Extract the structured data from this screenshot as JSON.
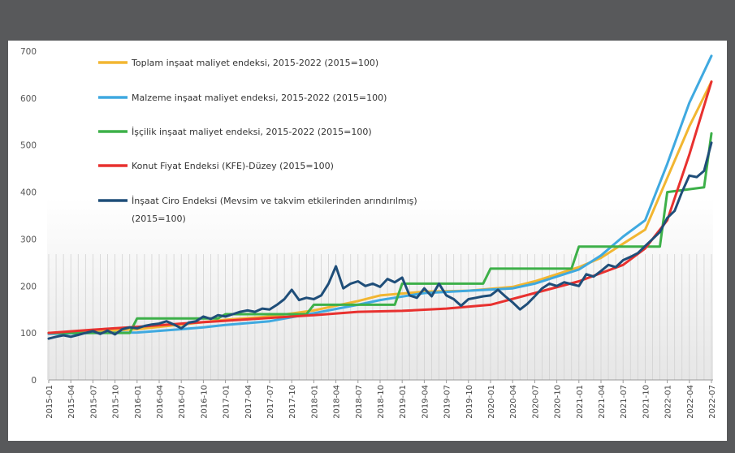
{
  "chart_data": {
    "type": "line",
    "title": "",
    "xlabel": "",
    "ylabel": "",
    "ylim": [
      0,
      700
    ],
    "yticks": [
      0,
      100,
      200,
      300,
      400,
      500,
      600,
      700
    ],
    "x_tick_labels": [
      "2015-01",
      "2015-04",
      "2015-07",
      "2015-10",
      "2016-01",
      "2016-04",
      "2016-07",
      "2016-10",
      "2017-01",
      "2017-04",
      "2017-07",
      "2017-10",
      "2018-01",
      "2018-04",
      "2018-07",
      "2018-10",
      "2019-01",
      "2019-04",
      "2019-07",
      "2019-10",
      "2020-01",
      "2020-04",
      "2020-07",
      "2020-10",
      "2021-01",
      "2021-04",
      "2021-07",
      "2021-10",
      "2022-01",
      "2022-04",
      "2022-07"
    ],
    "x_start": "2015-01",
    "x_end": "2022-07",
    "grid": false,
    "legend_position": "top-left",
    "series": [
      {
        "name": "Toplam inşaat maliyet endeksi, 2015-2022 (2015=100)",
        "color": "#f2b631",
        "points": [
          [
            "2015-01",
            100
          ],
          [
            "2015-07",
            103
          ],
          [
            "2016-01",
            108
          ],
          [
            "2016-07",
            118
          ],
          [
            "2017-01",
            128
          ],
          [
            "2017-07",
            135
          ],
          [
            "2018-01",
            148
          ],
          [
            "2018-07",
            168
          ],
          [
            "2018-10",
            180
          ],
          [
            "2019-04",
            188
          ],
          [
            "2019-10",
            190
          ],
          [
            "2020-04",
            198
          ],
          [
            "2020-07",
            210
          ],
          [
            "2020-10",
            225
          ],
          [
            "2021-01",
            240
          ],
          [
            "2021-04",
            260
          ],
          [
            "2021-07",
            290
          ],
          [
            "2021-10",
            320
          ],
          [
            "2022-01",
            430
          ],
          [
            "2022-04",
            540
          ],
          [
            "2022-07",
            635
          ]
        ]
      },
      {
        "name": "Malzeme inşaat maliyet endeksi, 2015-2022 (2015=100)",
        "color": "#3fa9e0",
        "points": [
          [
            "2015-01",
            98
          ],
          [
            "2015-07",
            100
          ],
          [
            "2016-01",
            101
          ],
          [
            "2016-07",
            108
          ],
          [
            "2016-10",
            112
          ],
          [
            "2017-01",
            117
          ],
          [
            "2017-07",
            125
          ],
          [
            "2018-01",
            142
          ],
          [
            "2018-07",
            160
          ],
          [
            "2018-10",
            170
          ],
          [
            "2019-04",
            185
          ],
          [
            "2019-10",
            190
          ],
          [
            "2020-04",
            195
          ],
          [
            "2020-07",
            205
          ],
          [
            "2020-10",
            220
          ],
          [
            "2021-01",
            235
          ],
          [
            "2021-04",
            265
          ],
          [
            "2021-07",
            305
          ],
          [
            "2021-10",
            340
          ],
          [
            "2022-01",
            460
          ],
          [
            "2022-04",
            590
          ],
          [
            "2022-07",
            690
          ]
        ]
      },
      {
        "name": "İşçilik inşaat maliyet endeksi, 2015-2022 (2015=100)",
        "color": "#3db049",
        "points": [
          [
            "2015-01",
            100
          ],
          [
            "2015-12",
            100
          ],
          [
            "2016-01",
            131
          ],
          [
            "2016-12",
            131
          ],
          [
            "2017-01",
            140
          ],
          [
            "2017-12",
            140
          ],
          [
            "2018-01",
            160
          ],
          [
            "2018-12",
            160
          ],
          [
            "2019-01",
            205
          ],
          [
            "2019-12",
            205
          ],
          [
            "2020-01",
            237
          ],
          [
            "2020-12",
            237
          ],
          [
            "2021-01",
            284
          ],
          [
            "2021-12",
            284
          ],
          [
            "2022-01",
            400
          ],
          [
            "2022-06",
            410
          ],
          [
            "2022-07",
            525
          ]
        ]
      },
      {
        "name": "Konut Fiyat Endeksi (KFE)-Düzey (2015=100)",
        "color": "#e8312f",
        "points": [
          [
            "2015-01",
            100
          ],
          [
            "2015-07",
            107
          ],
          [
            "2016-01",
            113
          ],
          [
            "2016-07",
            120
          ],
          [
            "2017-01",
            126
          ],
          [
            "2017-07",
            132
          ],
          [
            "2018-01",
            138
          ],
          [
            "2018-07",
            145
          ],
          [
            "2019-01",
            147
          ],
          [
            "2019-07",
            152
          ],
          [
            "2020-01",
            160
          ],
          [
            "2020-07",
            185
          ],
          [
            "2021-01",
            210
          ],
          [
            "2021-07",
            245
          ],
          [
            "2021-10",
            280
          ],
          [
            "2022-01",
            340
          ],
          [
            "2022-04",
            480
          ],
          [
            "2022-07",
            635
          ]
        ]
      },
      {
        "name": "İnşaat Ciro Endeksi  (Mevsim ve takvim etkilerinden arındırılmış) (2015=100)",
        "color": "#1f4e79",
        "points": [
          [
            "2015-01",
            88
          ],
          [
            "2015-02",
            92
          ],
          [
            "2015-03",
            95
          ],
          [
            "2015-04",
            92
          ],
          [
            "2015-05",
            96
          ],
          [
            "2015-06",
            100
          ],
          [
            "2015-07",
            104
          ],
          [
            "2015-08",
            98
          ],
          [
            "2015-09",
            105
          ],
          [
            "2015-10",
            97
          ],
          [
            "2015-11",
            108
          ],
          [
            "2015-12",
            112
          ],
          [
            "2016-01",
            110
          ],
          [
            "2016-02",
            115
          ],
          [
            "2016-03",
            118
          ],
          [
            "2016-04",
            120
          ],
          [
            "2016-05",
            125
          ],
          [
            "2016-06",
            118
          ],
          [
            "2016-07",
            110
          ],
          [
            "2016-08",
            122
          ],
          [
            "2016-09",
            125
          ],
          [
            "2016-10",
            135
          ],
          [
            "2016-11",
            130
          ],
          [
            "2016-12",
            138
          ],
          [
            "2017-01",
            135
          ],
          [
            "2017-02",
            140
          ],
          [
            "2017-03",
            145
          ],
          [
            "2017-04",
            148
          ],
          [
            "2017-05",
            145
          ],
          [
            "2017-06",
            152
          ],
          [
            "2017-07",
            150
          ],
          [
            "2017-08",
            160
          ],
          [
            "2017-09",
            172
          ],
          [
            "2017-10",
            192
          ],
          [
            "2017-11",
            170
          ],
          [
            "2017-12",
            175
          ],
          [
            "2018-01",
            172
          ],
          [
            "2018-02",
            180
          ],
          [
            "2018-03",
            205
          ],
          [
            "2018-04",
            242
          ],
          [
            "2018-05",
            195
          ],
          [
            "2018-06",
            205
          ],
          [
            "2018-07",
            210
          ],
          [
            "2018-08",
            200
          ],
          [
            "2018-09",
            205
          ],
          [
            "2018-10",
            198
          ],
          [
            "2018-11",
            215
          ],
          [
            "2018-12",
            208
          ],
          [
            "2019-01",
            218
          ],
          [
            "2019-02",
            180
          ],
          [
            "2019-03",
            175
          ],
          [
            "2019-04",
            195
          ],
          [
            "2019-05",
            178
          ],
          [
            "2019-06",
            205
          ],
          [
            "2019-07",
            180
          ],
          [
            "2019-08",
            172
          ],
          [
            "2019-09",
            158
          ],
          [
            "2019-10",
            172
          ],
          [
            "2019-11",
            175
          ],
          [
            "2019-12",
            178
          ],
          [
            "2020-01",
            180
          ],
          [
            "2020-02",
            192
          ],
          [
            "2020-03",
            178
          ],
          [
            "2020-04",
            165
          ],
          [
            "2020-05",
            150
          ],
          [
            "2020-06",
            162
          ],
          [
            "2020-07",
            178
          ],
          [
            "2020-08",
            195
          ],
          [
            "2020-09",
            205
          ],
          [
            "2020-10",
            200
          ],
          [
            "2020-11",
            208
          ],
          [
            "2020-12",
            204
          ],
          [
            "2021-01",
            200
          ],
          [
            "2021-02",
            225
          ],
          [
            "2021-03",
            220
          ],
          [
            "2021-04",
            232
          ],
          [
            "2021-05",
            245
          ],
          [
            "2021-06",
            240
          ],
          [
            "2021-07",
            255
          ],
          [
            "2021-08",
            262
          ],
          [
            "2021-09",
            270
          ],
          [
            "2021-10",
            285
          ],
          [
            "2021-11",
            300
          ],
          [
            "2021-12",
            315
          ],
          [
            "2022-01",
            345
          ],
          [
            "2022-02",
            360
          ],
          [
            "2022-03",
            400
          ],
          [
            "2022-04",
            435
          ],
          [
            "2022-05",
            432
          ],
          [
            "2022-06",
            445
          ],
          [
            "2022-07",
            505
          ]
        ]
      }
    ]
  }
}
